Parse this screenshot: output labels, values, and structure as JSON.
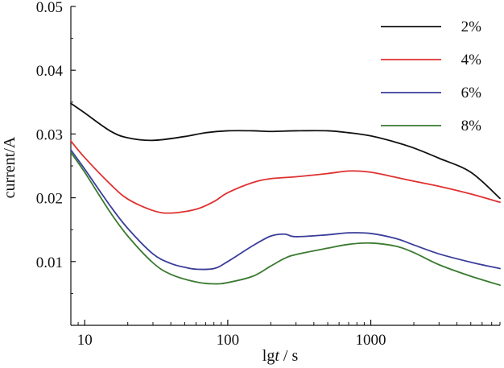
{
  "chart_data": {
    "type": "line",
    "title": "",
    "xlabel_prefix": "lg",
    "xlabel_var": "t",
    "xlabel_suffix": " / s",
    "ylabel": "current/A",
    "xscale": "log",
    "xlim": [
      8,
      8000
    ],
    "ylim": [
      0,
      0.05
    ],
    "xticks": [
      10,
      100,
      1000
    ],
    "xtick_labels": [
      "10",
      "100",
      "1000"
    ],
    "yticks": [
      0.01,
      0.02,
      0.03,
      0.04,
      0.05
    ],
    "ytick_labels": [
      "0.01",
      "0.02",
      "0.03",
      "0.04",
      "0.05"
    ],
    "legend_position": "top-right",
    "series": [
      {
        "name": "2%",
        "color": "#111111",
        "x": [
          8,
          10,
          15,
          20,
          30,
          50,
          70,
          100,
          150,
          200,
          300,
          500,
          700,
          1000,
          1500,
          2000,
          3000,
          5000,
          8000
        ],
        "y": [
          0.0348,
          0.0333,
          0.0305,
          0.0294,
          0.029,
          0.0296,
          0.0302,
          0.0305,
          0.0305,
          0.0304,
          0.0305,
          0.0305,
          0.0302,
          0.0297,
          0.0287,
          0.0278,
          0.0262,
          0.024,
          0.0199
        ]
      },
      {
        "name": "4%",
        "color": "#e03030",
        "x": [
          8,
          10,
          15,
          20,
          30,
          40,
          60,
          80,
          100,
          150,
          200,
          300,
          500,
          700,
          1000,
          1500,
          2000,
          3000,
          5000,
          8000
        ],
        "y": [
          0.0289,
          0.0263,
          0.0222,
          0.0198,
          0.018,
          0.0176,
          0.0182,
          0.0194,
          0.0208,
          0.0224,
          0.023,
          0.0233,
          0.0238,
          0.0242,
          0.024,
          0.0232,
          0.0226,
          0.0218,
          0.0206,
          0.0193
        ]
      },
      {
        "name": "6%",
        "color": "#3a3e9a",
        "x": [
          8,
          10,
          15,
          20,
          30,
          40,
          50,
          60,
          80,
          100,
          150,
          200,
          250,
          300,
          500,
          700,
          1000,
          1500,
          2000,
          3000,
          5000,
          8000
        ],
        "y": [
          0.0275,
          0.0245,
          0.0188,
          0.0152,
          0.0112,
          0.0097,
          0.0091,
          0.0088,
          0.0089,
          0.01,
          0.0125,
          0.014,
          0.0143,
          0.0139,
          0.0142,
          0.0145,
          0.0144,
          0.0136,
          0.0126,
          0.0112,
          0.0099,
          0.0089
        ]
      },
      {
        "name": "8%",
        "color": "#3a7a30",
        "x": [
          8,
          10,
          15,
          20,
          30,
          40,
          60,
          80,
          100,
          150,
          200,
          250,
          300,
          500,
          700,
          1000,
          1500,
          2000,
          3000,
          5000,
          8000
        ],
        "y": [
          0.0271,
          0.024,
          0.0178,
          0.014,
          0.0098,
          0.008,
          0.0068,
          0.0065,
          0.0067,
          0.0077,
          0.0093,
          0.0105,
          0.0111,
          0.0121,
          0.0127,
          0.0129,
          0.0124,
          0.0114,
          0.0095,
          0.0077,
          0.0063
        ]
      }
    ]
  }
}
